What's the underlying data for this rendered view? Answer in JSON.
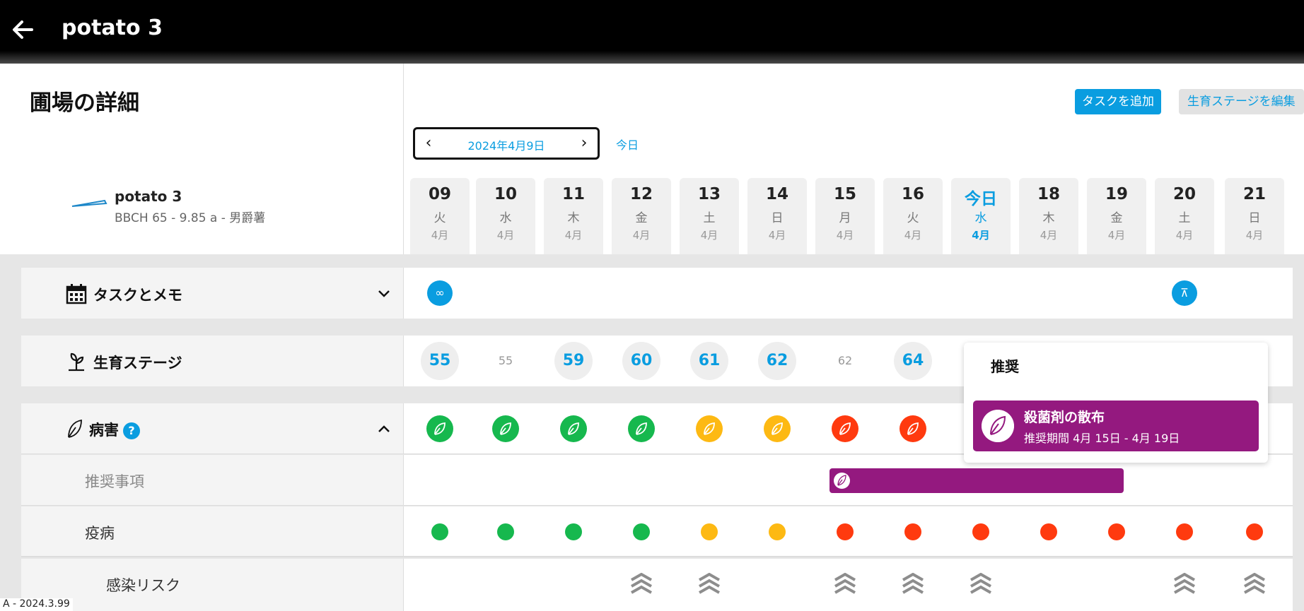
{
  "app": {
    "title": "potato 3"
  },
  "page": {
    "title": "圃場の詳細"
  },
  "field": {
    "name": "potato 3",
    "meta": "BBCH 65 - 9.85 a - 男爵薯"
  },
  "toolbar": {
    "add_task": "タスクを追加",
    "edit_stage": "生育ステージを編集"
  },
  "date_picker": {
    "date": "2024年4月9日",
    "today_link": "今日"
  },
  "days": [
    {
      "num": "09",
      "weekday": "火",
      "month": "4月"
    },
    {
      "num": "10",
      "weekday": "水",
      "month": "4月"
    },
    {
      "num": "11",
      "weekday": "木",
      "month": "4月"
    },
    {
      "num": "12",
      "weekday": "金",
      "month": "4月"
    },
    {
      "num": "13",
      "weekday": "土",
      "month": "4月"
    },
    {
      "num": "14",
      "weekday": "日",
      "month": "4月"
    },
    {
      "num": "15",
      "weekday": "月",
      "month": "4月"
    },
    {
      "num": "16",
      "weekday": "火",
      "month": "4月"
    },
    {
      "num": "今日",
      "weekday": "水",
      "month": "4月",
      "today": true
    },
    {
      "num": "18",
      "weekday": "木",
      "month": "4月"
    },
    {
      "num": "19",
      "weekday": "金",
      "month": "4月"
    },
    {
      "num": "20",
      "weekday": "土",
      "month": "4月"
    },
    {
      "num": "21",
      "weekday": "日",
      "month": "4月"
    }
  ],
  "rows": {
    "tasks": {
      "label": "タスクとメモ",
      "icons": [
        {
          "day": 0,
          "icon": "binoculars-icon"
        },
        {
          "day": 11,
          "icon": "irrigation-icon"
        }
      ]
    },
    "growth": {
      "label": "生育ステージ",
      "stages": [
        {
          "day": 0,
          "value": "55",
          "style": "bubble"
        },
        {
          "day": 1,
          "value": "55",
          "style": "plain"
        },
        {
          "day": 2,
          "value": "59",
          "style": "bubble"
        },
        {
          "day": 3,
          "value": "60",
          "style": "bubble"
        },
        {
          "day": 4,
          "value": "61",
          "style": "bubble"
        },
        {
          "day": 5,
          "value": "62",
          "style": "bubble"
        },
        {
          "day": 6,
          "value": "62",
          "style": "plain"
        },
        {
          "day": 7,
          "value": "64",
          "style": "bubble"
        }
      ]
    },
    "disease": {
      "label": "病害",
      "help": "?",
      "risk_levels": [
        "low",
        "low",
        "low",
        "low",
        "medium",
        "medium",
        "high",
        "high"
      ],
      "recommendations_label": "推奨事項",
      "late_blight": {
        "label": "疫病",
        "levels": [
          "low",
          "low",
          "low",
          "low",
          "medium",
          "medium",
          "high",
          "high",
          "high",
          "high",
          "high",
          "high",
          "high"
        ]
      },
      "infection": {
        "label": "感染リスク",
        "days": [
          3,
          4,
          6,
          7,
          8,
          11,
          12
        ]
      }
    }
  },
  "popup": {
    "title": "推奨",
    "card_title": "殺菌剤の散布",
    "card_sub": "推奨期間 4月 15日 - 4月 19日"
  },
  "colors": {
    "low": "#16b84e",
    "medium": "#fdb913",
    "high": "#ff3a0f",
    "accent": "#0a9de0",
    "purple": "#94197f"
  },
  "version": "A - 2024.3.99"
}
